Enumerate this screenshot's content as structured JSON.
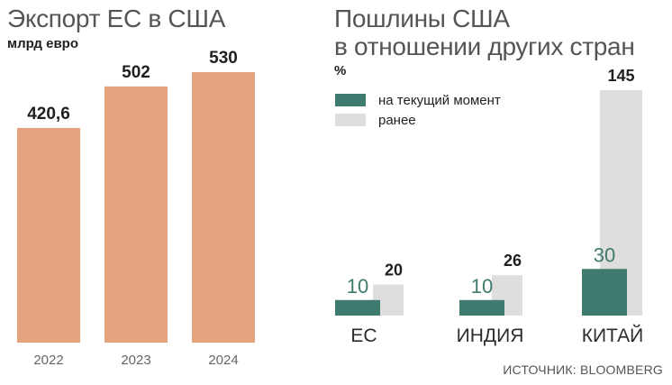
{
  "left": {
    "title": "Экспорт ЕС в США",
    "subtitle": "млрд евро"
  },
  "right": {
    "title_line1": "Пошлины США",
    "title_line2": "в отношении других стран",
    "unit": "%",
    "legend": {
      "current": "на текущий момент",
      "previous": "ранее"
    }
  },
  "source": "ИСТОЧНИК: BLOOMBERG",
  "colors": {
    "bar_orange": "#e3a37c",
    "current": "#3e7a6e",
    "previous": "#dedede"
  },
  "chart_data": [
    {
      "type": "bar",
      "title": "Экспорт ЕС в США",
      "ylabel": "млрд евро",
      "categories": [
        "2022",
        "2023",
        "2024"
      ],
      "values": [
        420.6,
        502,
        530
      ],
      "value_labels": [
        "420,6",
        "502",
        "530"
      ],
      "ylim": [
        0,
        560
      ],
      "grid": false
    },
    {
      "type": "bar",
      "title": "Пошлины США в отношении других стран",
      "ylabel": "%",
      "categories": [
        "ЕС",
        "ИНДИЯ",
        "КИТАЙ"
      ],
      "series": [
        {
          "name": "на текущий момент",
          "values": [
            10,
            10,
            30
          ]
        },
        {
          "name": "ранее",
          "values": [
            20,
            26,
            145
          ]
        }
      ],
      "ylim": [
        0,
        160
      ],
      "grid": false,
      "legend": "top-left"
    }
  ]
}
